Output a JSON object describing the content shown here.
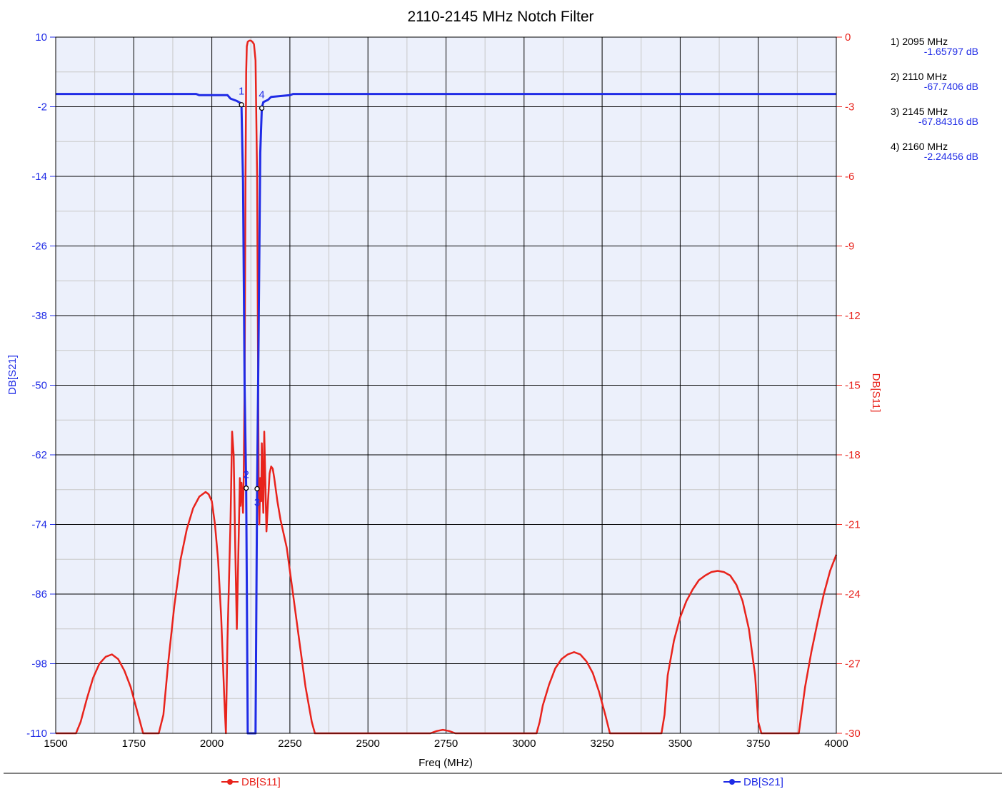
{
  "chart_data": {
    "type": "line",
    "title": "2110-2145 MHz Notch Filter",
    "xlabel": "Freq (MHz)",
    "ylabel_left": "DB[S21]",
    "ylabel_right": "DB[S11]",
    "xlim": [
      1500,
      4000
    ],
    "ylim_left": [
      -110,
      10
    ],
    "ylim_right": [
      -30,
      0
    ],
    "x_ticks": [
      1500,
      1750,
      2000,
      2250,
      2500,
      2750,
      3000,
      3250,
      3500,
      3750,
      4000
    ],
    "y_ticks_left": [
      10,
      -2,
      -14,
      -26,
      -38,
      -50,
      -62,
      -74,
      -86,
      -98,
      -110
    ],
    "y_ticks_right": [
      0,
      -3,
      -6,
      -9,
      -12,
      -15,
      -18,
      -21,
      -24,
      -27,
      -30
    ],
    "grid": true,
    "colors": {
      "S21": "#1f2be6",
      "S11": "#e8231c",
      "plot_bg": "#ecf0fb",
      "grid_major": "#000000",
      "grid_minor": "#c8c8c8"
    },
    "series": [
      {
        "name": "DB[S21]",
        "axis": "left",
        "color": "#1f2be6",
        "x": [
          1500,
          1950,
          1960,
          2050,
          2060,
          2080,
          2090,
          2095,
          2100,
          2105,
          2110,
          2115,
          2130,
          2140,
          2145,
          2150,
          2155,
          2160,
          2165,
          2180,
          2190,
          2250,
          2260,
          2300,
          4000
        ],
        "y": [
          0.2,
          0.2,
          0,
          0,
          -0.6,
          -1.0,
          -1.3,
          -1.66,
          -15,
          -50,
          -67.74,
          -110,
          -110,
          -110,
          -67.84,
          -40,
          -10,
          -2.24,
          -1.2,
          -0.8,
          -0.3,
          0,
          0.2,
          0.2,
          0.2
        ]
      },
      {
        "name": "DB[S11]",
        "axis": "right",
        "color": "#e8231c",
        "x": [
          1500,
          1565,
          1580,
          1600,
          1620,
          1640,
          1660,
          1680,
          1700,
          1720,
          1740,
          1760,
          1780,
          1790,
          1800,
          1830,
          1845,
          1860,
          1880,
          1900,
          1920,
          1940,
          1960,
          1980,
          1990,
          2000,
          2010,
          2020,
          2030,
          2040,
          2045,
          2050,
          2060,
          2065,
          2070,
          2075,
          2080,
          2090,
          2092,
          2095,
          2100,
          2102,
          2105,
          2108,
          2110,
          2112,
          2115,
          2120,
          2125,
          2130,
          2135,
          2140,
          2145,
          2148,
          2150,
          2152,
          2155,
          2158,
          2160,
          2162,
          2165,
          2168,
          2172,
          2175,
          2180,
          2185,
          2190,
          2195,
          2200,
          2210,
          2220,
          2240,
          2260,
          2280,
          2300,
          2320,
          2330,
          2340,
          2700,
          2720,
          2740,
          2760,
          2780,
          3040,
          3050,
          3060,
          3080,
          3100,
          3120,
          3140,
          3160,
          3180,
          3200,
          3220,
          3240,
          3260,
          3275,
          3285,
          3440,
          3450,
          3460,
          3480,
          3500,
          3520,
          3540,
          3560,
          3580,
          3600,
          3620,
          3640,
          3660,
          3680,
          3700,
          3720,
          3740,
          3750,
          3760,
          3880,
          3890,
          3900,
          3920,
          3940,
          3960,
          3980,
          4000
        ],
        "y": [
          -30,
          -30,
          -29.5,
          -28.5,
          -27.6,
          -27.0,
          -26.7,
          -26.6,
          -26.8,
          -27.3,
          -28.0,
          -29.0,
          -30,
          -30,
          -30,
          -30,
          -29.2,
          -27.0,
          -24.5,
          -22.5,
          -21.2,
          -20.3,
          -19.8,
          -19.6,
          -19.7,
          -20.0,
          -21.0,
          -22.5,
          -25.0,
          -28.5,
          -30,
          -26,
          -20.8,
          -17.0,
          -18.0,
          -22.0,
          -25.5,
          -19.0,
          -20.2,
          -19.2,
          -20.5,
          -19.0,
          -15.0,
          -6.0,
          -1.5,
          -0.4,
          -0.2,
          -0.15,
          -0.15,
          -0.2,
          -0.3,
          -1.0,
          -6.0,
          -14.0,
          -19.0,
          -21.0,
          -19.0,
          -20.0,
          -17.5,
          -19.0,
          -20.5,
          -17.0,
          -19.5,
          -21.3,
          -20.0,
          -18.8,
          -18.5,
          -18.6,
          -19.0,
          -20.0,
          -20.8,
          -22.0,
          -24.0,
          -26.0,
          -28.0,
          -29.5,
          -30,
          -30,
          -30,
          -29.9,
          -29.85,
          -29.9,
          -30,
          -30,
          -29.5,
          -28.8,
          -27.9,
          -27.2,
          -26.8,
          -26.6,
          -26.5,
          -26.6,
          -26.9,
          -27.4,
          -28.2,
          -29.2,
          -30,
          -30,
          -30,
          -29.2,
          -27.5,
          -26.0,
          -25.0,
          -24.3,
          -23.8,
          -23.4,
          -23.2,
          -23.05,
          -23.0,
          -23.05,
          -23.2,
          -23.6,
          -24.3,
          -25.5,
          -27.5,
          -29.5,
          -30,
          -30,
          -29.0,
          -28.0,
          -26.5,
          -25.2,
          -24.0,
          -23.0,
          -22.3
        ]
      }
    ],
    "markers": [
      {
        "id": "1",
        "series": "DB[S21]",
        "x": 2095,
        "y": -1.65797,
        "label": "1) 2095 MHz",
        "value": "-1.65797 dB"
      },
      {
        "id": "2",
        "series": "DB[S21]",
        "x": 2110,
        "y": -67.7406,
        "label": "2) 2110 MHz",
        "value": "-67.7406 dB"
      },
      {
        "id": "3",
        "series": "DB[S21]",
        "x": 2145,
        "y": -67.84316,
        "label": "3) 2145 MHz",
        "value": "-67.84316 dB"
      },
      {
        "id": "4",
        "series": "DB[S21]",
        "x": 2160,
        "y": -2.24456,
        "label": "4) 2160 MHz",
        "value": "-2.24456 dB"
      }
    ],
    "legend": [
      {
        "name": "DB[S11]",
        "color": "#e8231c"
      },
      {
        "name": "DB[S21]",
        "color": "#1f2be6"
      }
    ]
  }
}
